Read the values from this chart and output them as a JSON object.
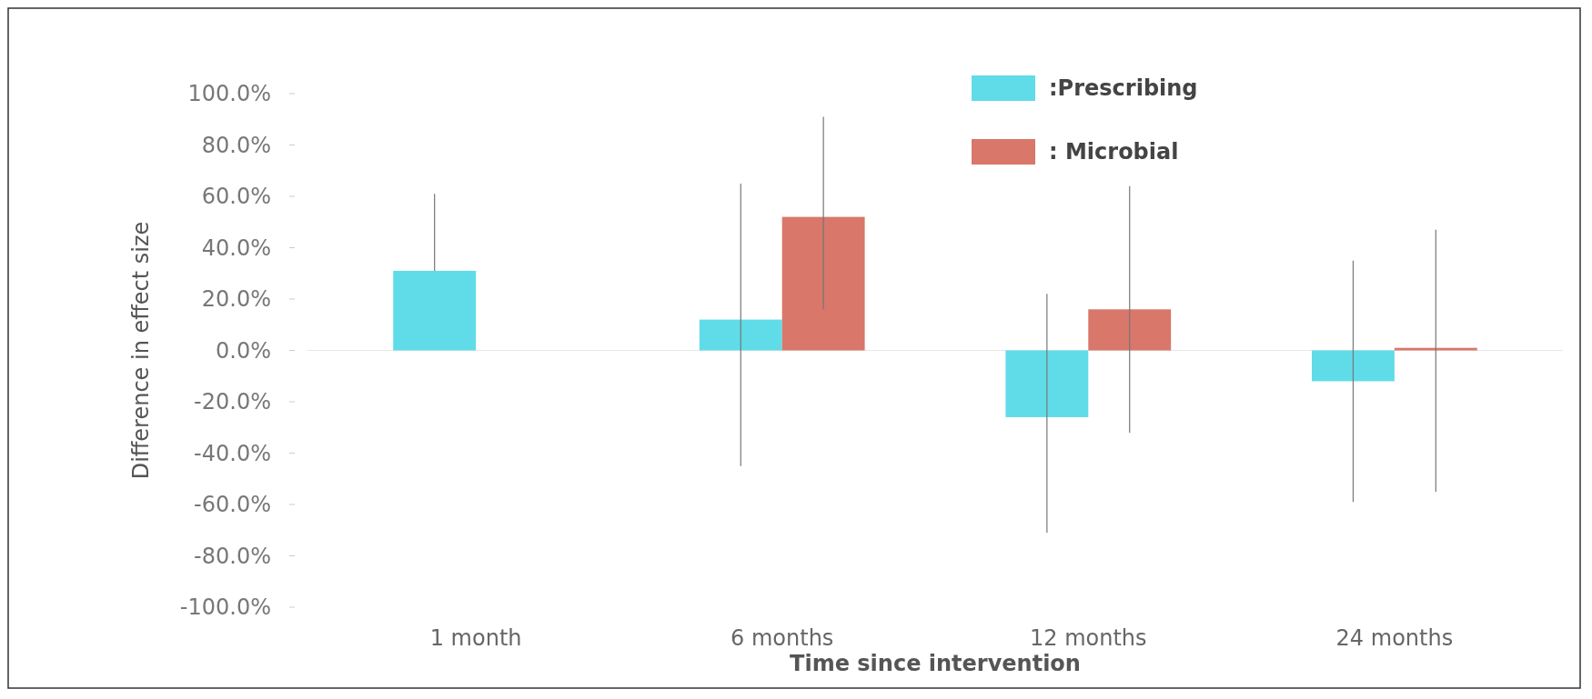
{
  "chart_data": {
    "type": "bar",
    "xlabel": "Time since intervention",
    "ylabel": "Difference in effect size",
    "categories": [
      "1 month",
      "6 months",
      "12 months",
      "24 months"
    ],
    "series": [
      {
        "name": ":Prescribing",
        "color": "#5fdce8",
        "values": [
          31,
          12,
          -26,
          -12
        ],
        "errors": [
          [
            31,
            61
          ],
          [
            -45,
            65
          ],
          [
            -71,
            22
          ],
          [
            -59,
            35
          ]
        ]
      },
      {
        "name": ": Microbial",
        "color": "#d9776a",
        "values": [
          null,
          52,
          16,
          1
        ],
        "errors": [
          null,
          [
            16,
            91
          ],
          [
            -32,
            64
          ],
          [
            -55,
            47
          ]
        ]
      }
    ],
    "ylim": [
      -100,
      100
    ],
    "yticks": [
      {
        "value": -100,
        "label": "-100.0%"
      },
      {
        "value": -80,
        "label": "-80.0%"
      },
      {
        "value": -60,
        "label": "-60.0%"
      },
      {
        "value": -40,
        "label": "-40.0%"
      },
      {
        "value": -20,
        "label": "-20.0%"
      },
      {
        "value": 0,
        "label": "0.0%"
      },
      {
        "value": 20,
        "label": "20.0%"
      },
      {
        "value": 40,
        "label": "40.0%"
      },
      {
        "value": 60,
        "label": "60.0%"
      },
      {
        "value": 80,
        "label": "80.0%"
      },
      {
        "value": 100,
        "label": "100.0%"
      }
    ],
    "ref_lines": [
      {
        "axis": "y",
        "value": 0,
        "color": "#e6e6e6"
      }
    ],
    "legend": "top right",
    "grid": false
  }
}
